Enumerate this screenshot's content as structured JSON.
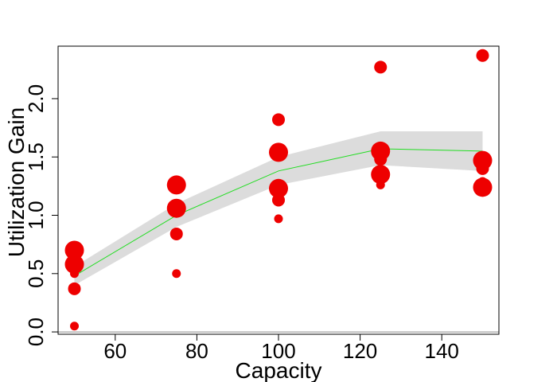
{
  "chart_data": {
    "type": "scatter",
    "title": "",
    "xlabel": "Capacity",
    "ylabel": "Utilization Gain",
    "xlim": [
      46,
      154
    ],
    "ylim": [
      -0.02,
      2.45
    ],
    "x_ticks": [
      60,
      80,
      100,
      120,
      140
    ],
    "y_ticks": [
      0.0,
      0.5,
      1.0,
      1.5,
      2.0
    ],
    "x_tick_labels": [
      "60",
      "80",
      "100",
      "120",
      "140"
    ],
    "y_tick_labels": [
      "0.0",
      "0.5",
      "1.0",
      "1.5",
      "2.0"
    ],
    "reference_line_y": 0,
    "grid": false,
    "legend": "none",
    "colors": {
      "points": "#ee0000",
      "fit_line": "#22dd22",
      "band": "#dcdcdc",
      "reference_line": "#888888"
    },
    "points": [
      {
        "x": 50,
        "y": 0.7,
        "size": 3
      },
      {
        "x": 50,
        "y": 0.58,
        "size": 3
      },
      {
        "x": 50,
        "y": 0.5,
        "size": 1
      },
      {
        "x": 50,
        "y": 0.37,
        "size": 2
      },
      {
        "x": 50,
        "y": 0.05,
        "size": 1
      },
      {
        "x": 75,
        "y": 1.26,
        "size": 3
      },
      {
        "x": 75,
        "y": 1.06,
        "size": 3
      },
      {
        "x": 75,
        "y": 0.84,
        "size": 2
      },
      {
        "x": 75,
        "y": 0.5,
        "size": 1
      },
      {
        "x": 100,
        "y": 1.82,
        "size": 2
      },
      {
        "x": 100,
        "y": 1.54,
        "size": 3
      },
      {
        "x": 100,
        "y": 1.23,
        "size": 3
      },
      {
        "x": 100,
        "y": 1.13,
        "size": 2
      },
      {
        "x": 100,
        "y": 0.97,
        "size": 1
      },
      {
        "x": 125,
        "y": 2.27,
        "size": 2
      },
      {
        "x": 125,
        "y": 1.55,
        "size": 3
      },
      {
        "x": 125,
        "y": 1.48,
        "size": 2
      },
      {
        "x": 125,
        "y": 1.35,
        "size": 3
      },
      {
        "x": 125,
        "y": 1.26,
        "size": 1
      },
      {
        "x": 150,
        "y": 2.37,
        "size": 2
      },
      {
        "x": 150,
        "y": 1.47,
        "size": 3
      },
      {
        "x": 150,
        "y": 1.4,
        "size": 2
      },
      {
        "x": 150,
        "y": 1.29,
        "size": 1
      },
      {
        "x": 150,
        "y": 1.24,
        "size": 3
      }
    ],
    "fit": {
      "x": [
        50,
        75,
        100,
        125,
        150
      ],
      "y": [
        0.48,
        1.0,
        1.38,
        1.57,
        1.55
      ],
      "lower": [
        0.4,
        0.9,
        1.26,
        1.43,
        1.38
      ],
      "upper": [
        0.56,
        1.1,
        1.5,
        1.72,
        1.72
      ]
    }
  }
}
